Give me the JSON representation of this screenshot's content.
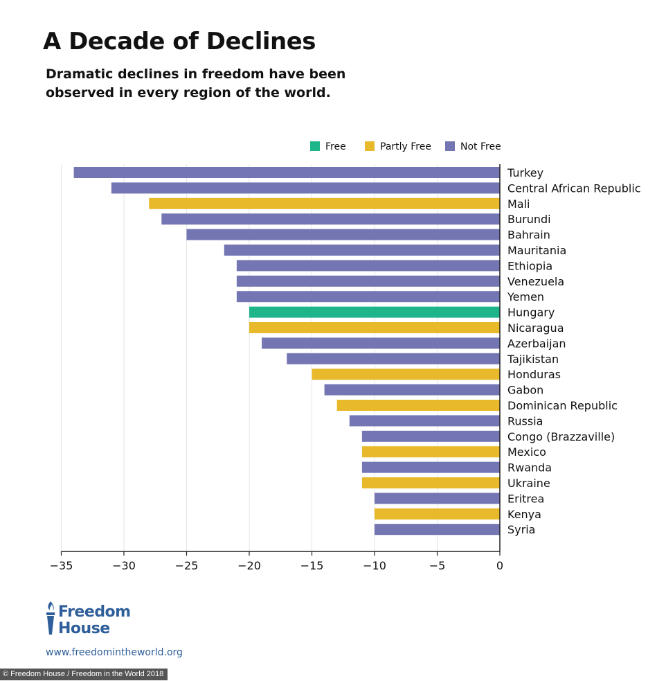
{
  "chart_data": {
    "type": "bar",
    "orientation": "horizontal",
    "title": "A Decade of Declines",
    "subtitle": "Dramatic declines in freedom have been observed in every region of the world.",
    "xlim": [
      -35,
      0
    ],
    "xticks": [
      -35,
      -30,
      -25,
      -20,
      -15,
      -10,
      -5,
      0
    ],
    "xtick_labels": [
      "−35",
      "−30",
      "−25",
      "−20",
      "−15",
      "−10",
      "−5",
      "0"
    ],
    "grid": true,
    "legend_position": "top-right",
    "legend": [
      {
        "key": "free",
        "label": "Free",
        "color": "#1eb58a"
      },
      {
        "key": "partly",
        "label": "Partly Free",
        "color": "#e8b92a"
      },
      {
        "key": "not",
        "label": "Not Free",
        "color": "#7475b3"
      }
    ],
    "categories": [
      "Turkey",
      "Central African Republic",
      "Mali",
      "Burundi",
      "Bahrain",
      "Mauritania",
      "Ethiopia",
      "Venezuela",
      "Yemen",
      "Hungary",
      "Nicaragua",
      "Azerbaijan",
      "Tajikistan",
      "Honduras",
      "Gabon",
      "Dominican Republic",
      "Russia",
      "Congo (Brazzaville)",
      "Mexico",
      "Rwanda",
      "Ukraine",
      "Eritrea",
      "Kenya",
      "Syria"
    ],
    "values": [
      -34,
      -31,
      -28,
      -27,
      -25,
      -22,
      -21,
      -21,
      -21,
      -20,
      -20,
      -19,
      -17,
      -15,
      -14,
      -13,
      -12,
      -11,
      -11,
      -11,
      -11,
      -10,
      -10,
      -10
    ],
    "status": [
      "not",
      "not",
      "partly",
      "not",
      "not",
      "not",
      "not",
      "not",
      "not",
      "free",
      "partly",
      "not",
      "not",
      "partly",
      "not",
      "partly",
      "not",
      "not",
      "partly",
      "not",
      "partly",
      "not",
      "partly",
      "not"
    ]
  },
  "logo": {
    "line1": "Freedom",
    "line2": "House",
    "icon": "torch-icon"
  },
  "url": "www.freedomintheworld.org",
  "credit": "© Freedom House / Freedom in the World 2018"
}
